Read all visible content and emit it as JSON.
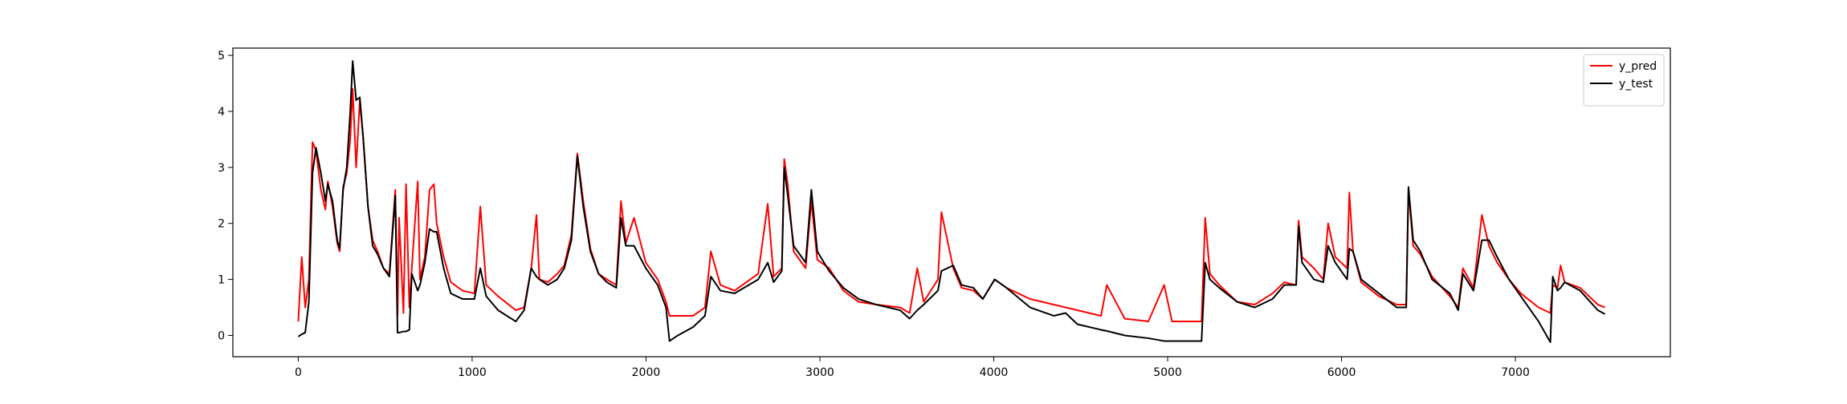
{
  "chart_data": {
    "type": "line",
    "x": [
      0,
      20,
      40,
      61,
      82,
      102,
      130,
      156,
      170,
      197,
      224,
      238,
      258,
      279,
      299,
      313,
      333,
      354,
      374,
      401,
      428,
      456,
      490,
      524,
      558,
      571,
      580,
      605,
      620,
      639,
      653,
      687,
      700,
      728,
      755,
      780,
      796,
      836,
      877,
      945,
      1013,
      1047,
      1081,
      1149,
      1251,
      1299,
      1340,
      1370,
      1387,
      1435,
      1489,
      1530,
      1571,
      1605,
      1639,
      1680,
      1727,
      1775,
      1829,
      1856,
      1884,
      1931,
      1999,
      2067,
      2115,
      2135,
      2183,
      2271,
      2339,
      2373,
      2428,
      2509,
      2645,
      2700,
      2734,
      2781,
      2795,
      2815,
      2849,
      2918,
      2951,
      2985,
      3053,
      3135,
      3223,
      3325,
      3461,
      3516,
      3560,
      3597,
      3679,
      3699,
      3767,
      3815,
      3883,
      3937,
      4005,
      4073,
      4209,
      4345,
      4413,
      4481,
      4617,
      4650,
      4753,
      4889,
      4980,
      5025,
      5161,
      5195,
      5216,
      5243,
      5297,
      5399,
      5501,
      5603,
      5671,
      5739,
      5753,
      5773,
      5841,
      5895,
      5923,
      5964,
      6032,
      6045,
      6066,
      6113,
      6215,
      6317,
      6372,
      6385,
      6412,
      6453,
      6521,
      6623,
      6671,
      6698,
      6759,
      6807,
      6848,
      6895,
      6963,
      7031,
      7133,
      7201,
      7215,
      7242,
      7260,
      7283,
      7372,
      7474,
      7515
    ],
    "series": [
      {
        "name": "y_pred",
        "color": "#ff0000",
        "values": [
          0.25,
          1.4,
          0.5,
          1.0,
          3.45,
          3.3,
          2.6,
          2.25,
          2.75,
          2.3,
          1.65,
          1.5,
          2.65,
          2.9,
          3.5,
          4.4,
          3.0,
          4.2,
          3.5,
          2.3,
          1.7,
          1.5,
          1.2,
          1.1,
          2.6,
          0.35,
          2.1,
          0.4,
          2.7,
          0.5,
          1.2,
          2.75,
          1.0,
          1.4,
          2.6,
          2.7,
          2.0,
          1.4,
          0.95,
          0.8,
          0.75,
          2.3,
          0.9,
          0.7,
          0.45,
          0.5,
          1.2,
          2.15,
          1.0,
          0.95,
          1.1,
          1.25,
          1.8,
          3.25,
          2.4,
          1.55,
          1.1,
          1.0,
          0.9,
          2.4,
          1.65,
          2.1,
          1.3,
          1.0,
          0.6,
          0.35,
          0.35,
          0.35,
          0.5,
          1.5,
          0.9,
          0.8,
          1.1,
          2.35,
          1.05,
          1.2,
          3.15,
          2.7,
          1.5,
          1.2,
          2.4,
          1.35,
          1.2,
          0.8,
          0.6,
          0.55,
          0.5,
          0.4,
          1.2,
          0.6,
          1.0,
          2.2,
          1.2,
          0.85,
          0.8,
          0.65,
          1.0,
          0.85,
          0.65,
          0.55,
          0.5,
          0.45,
          0.35,
          0.9,
          0.3,
          0.25,
          0.9,
          0.25,
          0.25,
          0.25,
          2.1,
          1.1,
          0.9,
          0.6,
          0.55,
          0.75,
          0.95,
          0.9,
          2.05,
          1.4,
          1.2,
          1.0,
          2.0,
          1.4,
          1.2,
          2.55,
          1.5,
          0.95,
          0.7,
          0.55,
          0.55,
          2.6,
          1.6,
          1.45,
          1.05,
          0.7,
          0.5,
          1.2,
          0.85,
          2.15,
          1.6,
          1.3,
          1.0,
          0.75,
          0.5,
          0.4,
          0.9,
          0.85,
          1.25,
          0.95,
          0.85,
          0.55,
          0.5
        ]
      },
      {
        "name": "y_test",
        "color": "#000000",
        "values": [
          -0.02,
          0.02,
          0.05,
          0.6,
          2.9,
          3.35,
          2.9,
          2.4,
          2.7,
          2.4,
          1.7,
          1.55,
          2.6,
          3.0,
          4.0,
          4.9,
          4.2,
          4.25,
          3.5,
          2.3,
          1.6,
          1.45,
          1.2,
          1.05,
          2.5,
          0.05,
          0.05,
          0.07,
          0.07,
          0.1,
          1.1,
          0.8,
          0.9,
          1.3,
          1.9,
          1.85,
          1.85,
          1.2,
          0.75,
          0.65,
          0.65,
          1.2,
          0.7,
          0.45,
          0.25,
          0.45,
          1.2,
          1.05,
          1.0,
          0.9,
          1.0,
          1.2,
          1.7,
          3.2,
          2.3,
          1.5,
          1.1,
          0.95,
          0.85,
          2.1,
          1.6,
          1.6,
          1.2,
          0.9,
          0.5,
          -0.1,
          0.0,
          0.15,
          0.35,
          1.05,
          0.8,
          0.75,
          1.0,
          1.3,
          0.95,
          1.15,
          3.0,
          2.5,
          1.6,
          1.3,
          2.6,
          1.5,
          1.15,
          0.85,
          0.65,
          0.55,
          0.45,
          0.3,
          0.45,
          0.55,
          0.8,
          1.15,
          1.25,
          0.9,
          0.85,
          0.65,
          1.0,
          0.85,
          0.5,
          0.35,
          0.4,
          0.2,
          0.1,
          0.08,
          0.0,
          -0.05,
          -0.1,
          -0.1,
          -0.1,
          -0.1,
          1.3,
          1.0,
          0.85,
          0.6,
          0.5,
          0.65,
          0.9,
          0.9,
          1.95,
          1.3,
          1.0,
          0.95,
          1.6,
          1.3,
          1.0,
          1.55,
          1.5,
          1.0,
          0.75,
          0.5,
          0.5,
          2.65,
          1.7,
          1.5,
          1.0,
          0.75,
          0.45,
          1.1,
          0.8,
          1.7,
          1.7,
          1.4,
          1.0,
          0.7,
          0.25,
          -0.12,
          1.05,
          0.8,
          0.85,
          0.95,
          0.8,
          0.45,
          0.38
        ]
      }
    ],
    "xlim": [
      -376,
      7891
    ],
    "ylim": [
      -0.38,
      5.13
    ],
    "xticks": [
      0,
      1000,
      2000,
      3000,
      4000,
      5000,
      6000,
      7000
    ],
    "yticks": [
      0,
      1,
      2,
      3,
      4,
      5
    ],
    "legend": "upper right"
  }
}
